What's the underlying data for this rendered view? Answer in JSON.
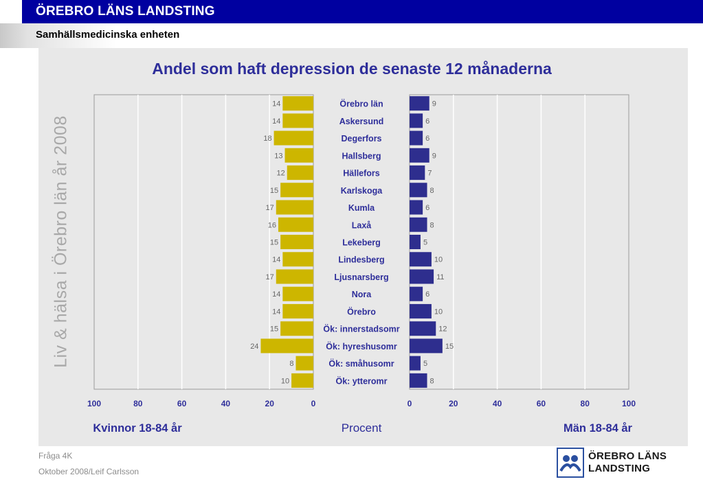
{
  "header": {
    "title": "ÖREBRO LÄNS LANDSTING",
    "subtitle": "Samhällsmedicinska enheten"
  },
  "side_label": "Liv & hälsa i Örebro län år 2008",
  "footer": {
    "line1": "Fråga 4K",
    "line2": "Oktober 2008/Leif Carlsson"
  },
  "logo": {
    "line1": "ÖREBRO LÄNS",
    "line2": "LANDSTING"
  },
  "colors": {
    "women": "#cdb600",
    "men": "#2e2e8e",
    "title": "#2e2e9a",
    "header_bg": "#0000a0"
  },
  "chart_data": {
    "type": "bar",
    "orientation": "horizontal",
    "layout": "back-to-back",
    "title": "Andel som haft depression de senaste 12 månaderna",
    "xlabel": "Procent",
    "xlim": [
      0,
      100
    ],
    "xticks": [
      0,
      20,
      40,
      60,
      80,
      100
    ],
    "grid": true,
    "categories": [
      "Örebro län",
      "Askersund",
      "Degerfors",
      "Hallsberg",
      "Hällefors",
      "Karlskoga",
      "Kumla",
      "Laxå",
      "Lekeberg",
      "Lindesberg",
      "Ljusnarsberg",
      "Nora",
      "Örebro",
      "Ök: innerstadsomr",
      "Ök: hyreshusomr",
      "Ök: småhusomr",
      "Ök: ytteromr"
    ],
    "series": [
      {
        "name": "Kvinnor 18-84 år",
        "side": "left",
        "values": [
          14,
          14,
          18,
          13,
          12,
          15,
          17,
          16,
          15,
          14,
          17,
          14,
          14,
          15,
          24,
          8,
          10
        ]
      },
      {
        "name": "Män 18-84 år",
        "side": "right",
        "values": [
          9,
          6,
          6,
          9,
          7,
          8,
          6,
          8,
          5,
          10,
          11,
          6,
          10,
          12,
          15,
          5,
          8
        ]
      }
    ]
  }
}
